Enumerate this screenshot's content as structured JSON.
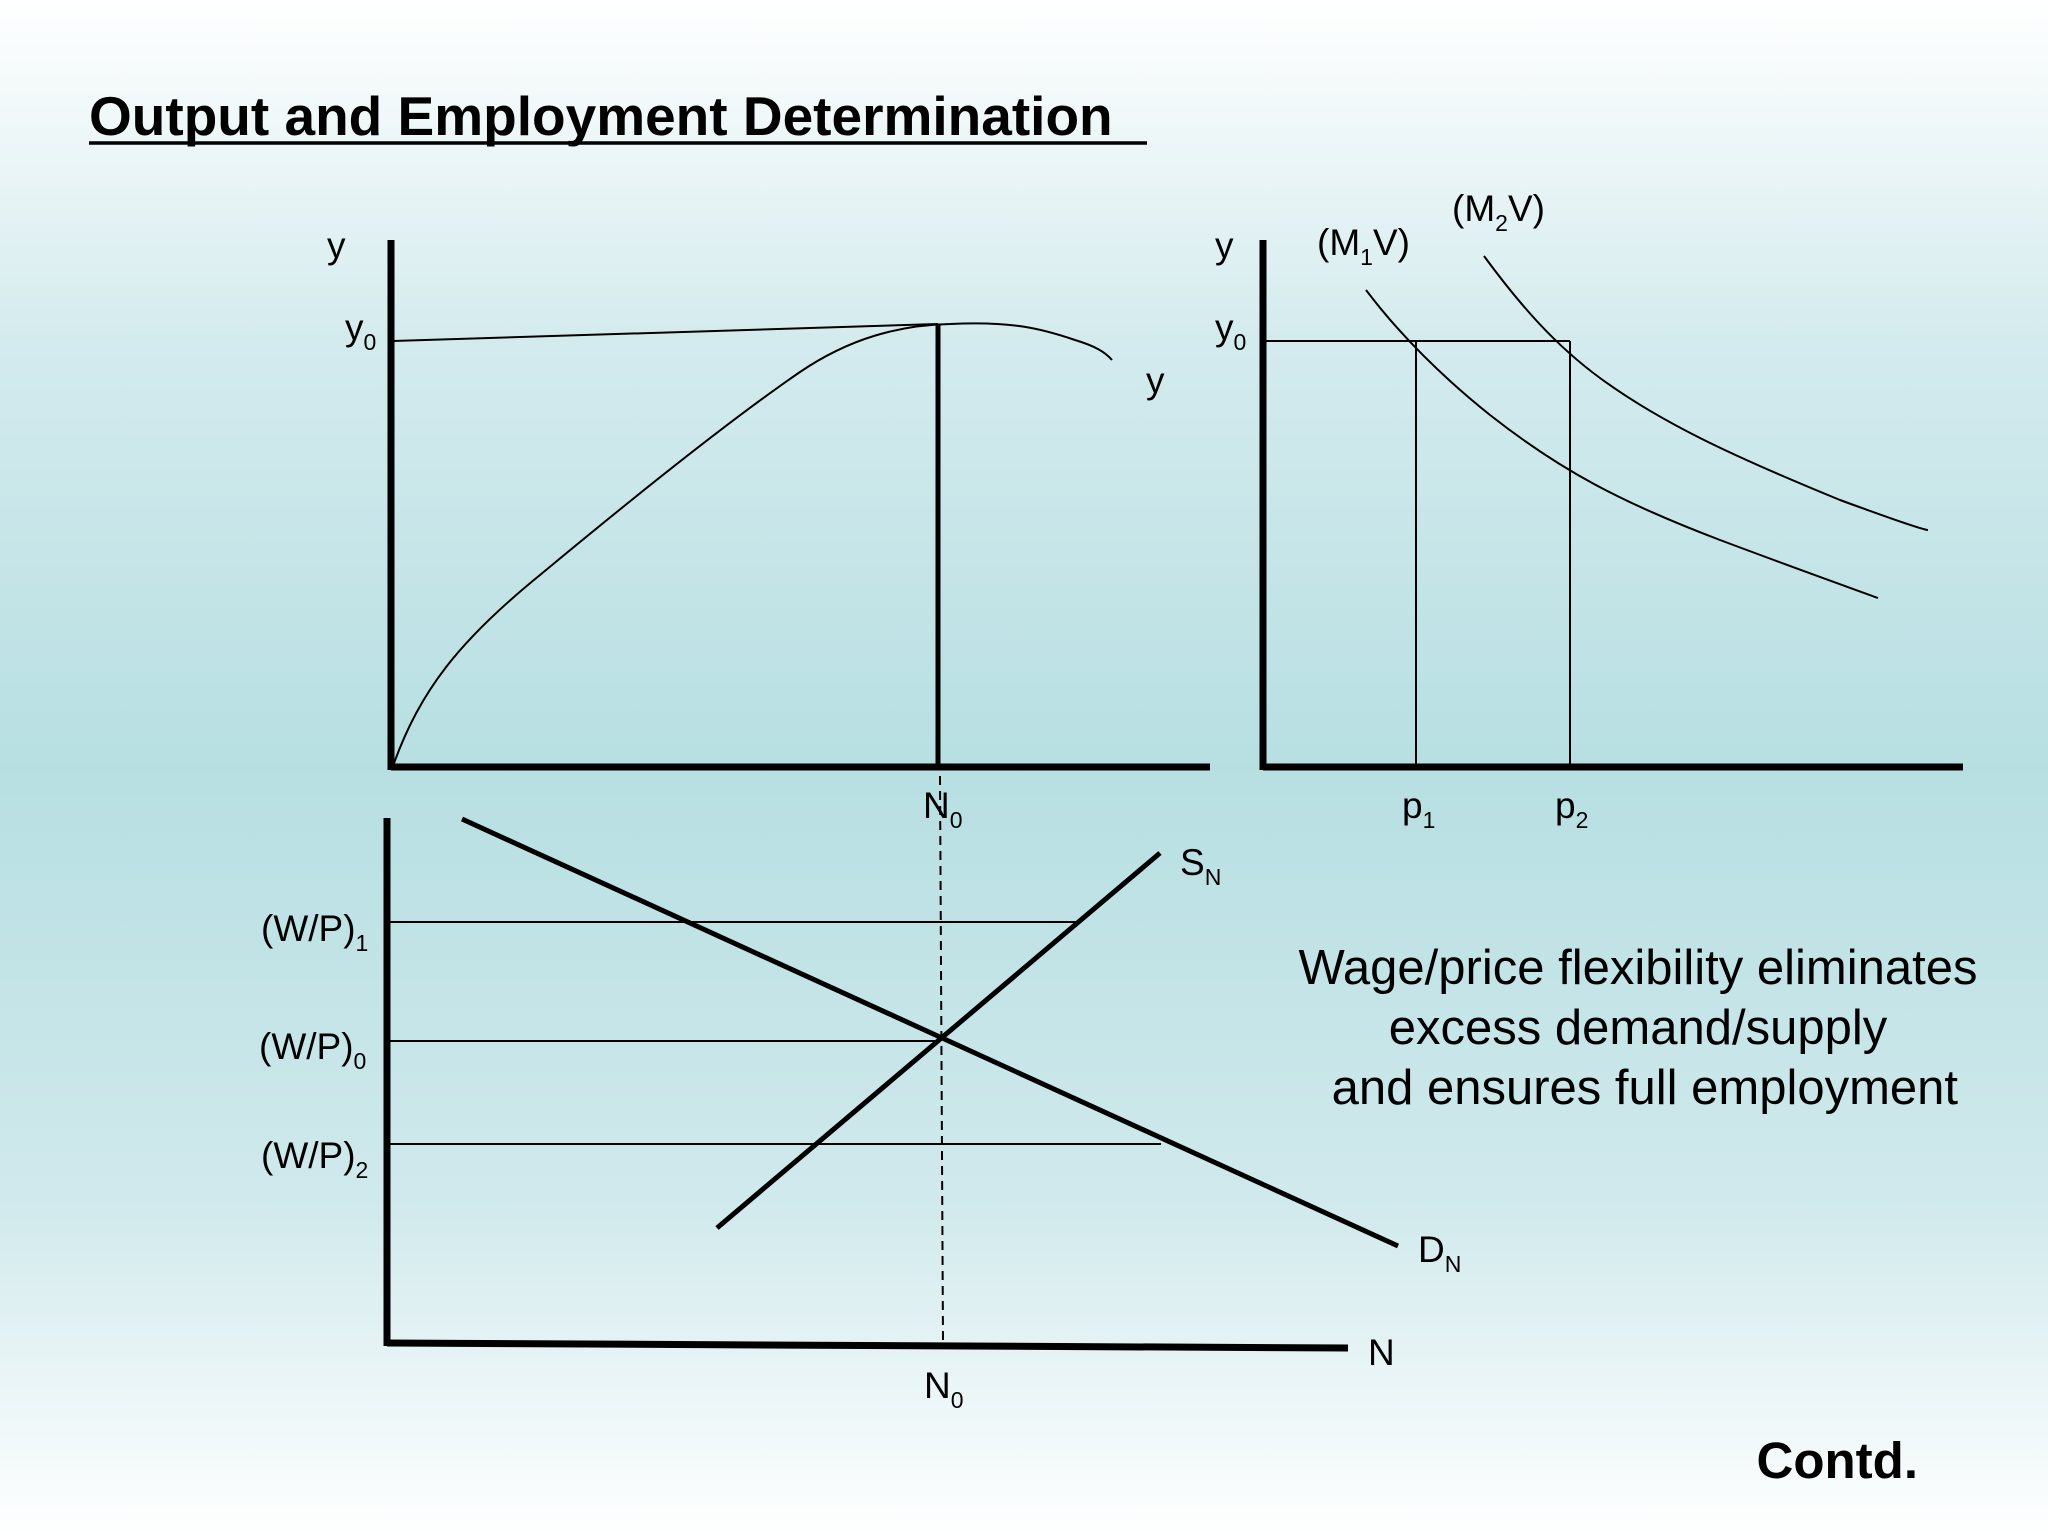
{
  "slide": {
    "title": "Output and Employment Determination",
    "footer": "Contd."
  },
  "production_panel": {
    "y_axis_label": "y",
    "y0_label": "y",
    "y0_sub": "0",
    "curve_label": "y",
    "x_marker_label": "N",
    "x_marker_sub": "0"
  },
  "money_panel": {
    "y_axis_label": "y",
    "y0_label": "y",
    "y0_sub": "0",
    "curve1": {
      "pre": "(M",
      "sub": "1",
      "post": "V)"
    },
    "curve2": {
      "pre": "(M",
      "sub": "2",
      "post": "V)"
    },
    "p1": {
      "label": "p",
      "sub": "1"
    },
    "p2": {
      "label": "p",
      "sub": "2"
    }
  },
  "labor_panel": {
    "wp1": {
      "label": "(W/P)",
      "sub": "1"
    },
    "wp0": {
      "label": "(W/P)",
      "sub": "0"
    },
    "wp2": {
      "label": "(W/P)",
      "sub": "2"
    },
    "supply": {
      "label": "S",
      "sub": "N"
    },
    "demand": {
      "label": "D",
      "sub": "N"
    },
    "x_axis_label": "N",
    "n0": {
      "label": "N",
      "sub": "0"
    }
  },
  "caption": {
    "lines": [
      "Wage/price flexibility eliminates",
      "excess demand/supply",
      " and ensures full employment"
    ]
  }
}
